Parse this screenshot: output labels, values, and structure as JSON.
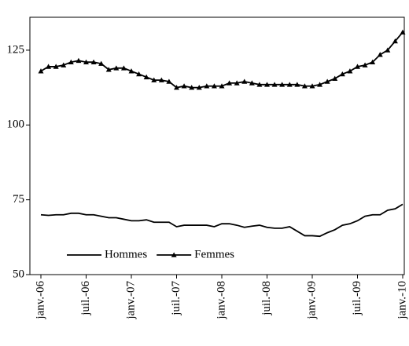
{
  "chart_data": {
    "type": "line",
    "categories": [
      "janv.-06",
      null,
      null,
      null,
      null,
      null,
      "juil.-06",
      null,
      null,
      null,
      null,
      null,
      "janv.-07",
      null,
      null,
      null,
      null,
      null,
      "juil.-07",
      null,
      null,
      null,
      null,
      null,
      "janv.-08",
      null,
      null,
      null,
      null,
      null,
      "juil.-08",
      null,
      null,
      null,
      null,
      null,
      "janv.-09",
      null,
      null,
      null,
      null,
      null,
      "juil.-09",
      null,
      null,
      null,
      null,
      null,
      "janv.-10"
    ],
    "series": [
      {
        "name": "Hommes",
        "color": "#000000",
        "marker": "none",
        "values": [
          70,
          69.8,
          70,
          70,
          70.5,
          70.5,
          70,
          70,
          69.5,
          69,
          69,
          68.5,
          68,
          68,
          68.3,
          67.5,
          67.5,
          67.5,
          66,
          66.5,
          66.5,
          66.5,
          66.5,
          66,
          67,
          67,
          66.5,
          65.8,
          66.2,
          66.5,
          65.8,
          65.5,
          65.5,
          66,
          64.5,
          63,
          63,
          62.8,
          64,
          65,
          66.5,
          67,
          68,
          69.5,
          70,
          70,
          71.5,
          72,
          73.5
        ]
      },
      {
        "name": "Femmes",
        "color": "#000000",
        "marker": "triangle",
        "values": [
          118,
          119.5,
          119.5,
          120,
          121,
          121.5,
          121,
          121,
          120.5,
          118.5,
          119,
          119,
          118,
          117,
          116,
          115,
          115,
          114.5,
          112.5,
          113,
          112.5,
          112.5,
          113,
          113,
          113,
          114,
          114,
          114.5,
          114,
          113.5,
          113.5,
          113.5,
          113.5,
          113.5,
          113.5,
          113,
          113,
          113.5,
          114.5,
          115.5,
          117,
          118,
          119.5,
          120,
          121,
          123.5,
          125,
          128,
          131
        ]
      }
    ],
    "ylim": [
      50,
      136
    ],
    "yticks": [
      50,
      75,
      100,
      125
    ],
    "legend": "lower left"
  }
}
